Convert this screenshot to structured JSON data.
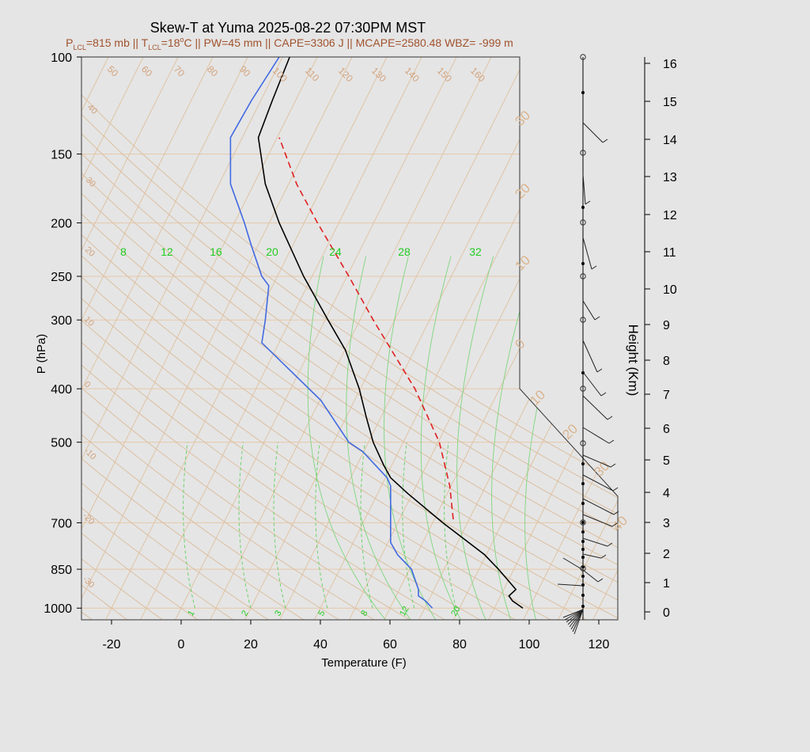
{
  "chart_data": {
    "type": "line",
    "title": "Skew-T at Yuma 2025-08-22 07:30PM MST",
    "subtitle_parts": {
      "plcl_prefix": "P",
      "plcl_sub": "LCL",
      "plcl_value": "=815 mb || T",
      "tlcl_sub": "LCL",
      "tlcl_value": "=18",
      "degree": "o",
      "rest": "C || PW=45 mm || CAPE=3306 J || MCAPE=2580.48 WBZ= -999 m"
    },
    "xlabel": "Temperature (F)",
    "ylabel": "P (hPa)",
    "y2label": "Height (Km)",
    "x_ticks": [
      -20,
      0,
      20,
      40,
      60,
      80,
      100,
      120
    ],
    "p_ticks": [
      100,
      150,
      200,
      250,
      300,
      400,
      500,
      700,
      850,
      1000
    ],
    "height_ticks": [
      "0",
      "1",
      "2",
      "3",
      "4",
      "5",
      "6",
      "7",
      "8",
      "9",
      "10",
      "11",
      "12",
      "13",
      "14",
      "15",
      "16"
    ],
    "isotherm_labels": [
      {
        "text": "50",
        "value": 50
      },
      {
        "text": "60",
        "value": 60
      },
      {
        "text": "70",
        "value": 70
      },
      {
        "text": "80",
        "value": 80
      },
      {
        "text": "90",
        "value": 90
      },
      {
        "text": "100",
        "value": 100
      },
      {
        "text": "110",
        "value": 110
      },
      {
        "text": "120",
        "value": 120
      },
      {
        "text": "130",
        "value": 130
      },
      {
        "text": "140",
        "value": 140
      },
      {
        "text": "150",
        "value": 150
      },
      {
        "text": "160",
        "value": 160
      },
      {
        "text": "40",
        "value": 40
      },
      {
        "text": "30",
        "value": 30
      },
      {
        "text": "20",
        "value": 20
      },
      {
        "text": "10",
        "value": 10
      },
      {
        "text": "0",
        "value": 0
      },
      {
        "text": "-10",
        "value": -10
      },
      {
        "text": "-20",
        "value": -20
      },
      {
        "text": "-30",
        "value": -30
      }
    ],
    "right_isotherm_labels": [
      "30",
      "20",
      "10",
      "0",
      "10",
      "20",
      "30",
      "40"
    ],
    "mixing_ratio_labels_top": [
      "8",
      "12",
      "16",
      "20",
      "24",
      "28",
      "32"
    ],
    "mixing_ratio_labels_bottom": [
      "1",
      "2",
      "3",
      "5",
      "8",
      "12",
      "20"
    ],
    "series": [
      {
        "name": "Temperature",
        "color": "#000000",
        "points": [
          [
            1000,
            100
          ],
          [
            970,
            97
          ],
          [
            950,
            96
          ],
          [
            925,
            98
          ],
          [
            850,
            93
          ],
          [
            800,
            89
          ],
          [
            700,
            77
          ],
          [
            620,
            67
          ],
          [
            580,
            62
          ],
          [
            550,
            60
          ],
          [
            500,
            57
          ],
          [
            450,
            55
          ],
          [
            400,
            53
          ],
          [
            340,
            49
          ],
          [
            300,
            44
          ],
          [
            250,
            37
          ],
          [
            200,
            30
          ],
          [
            170,
            26
          ],
          [
            140,
            24
          ],
          [
            120,
            28
          ],
          [
            100,
            33
          ]
        ]
      },
      {
        "name": "Dewpoint",
        "color": "#4169e1",
        "points": [
          [
            1000,
            74
          ],
          [
            970,
            72
          ],
          [
            950,
            70
          ],
          [
            925,
            70
          ],
          [
            850,
            68
          ],
          [
            800,
            64
          ],
          [
            760,
            62
          ],
          [
            700,
            62
          ],
          [
            650,
            62
          ],
          [
            600,
            62
          ],
          [
            580,
            61
          ],
          [
            520,
            54
          ],
          [
            500,
            50
          ],
          [
            420,
            42
          ],
          [
            330,
            25
          ],
          [
            300,
            26
          ],
          [
            260,
            27
          ],
          [
            250,
            25
          ],
          [
            220,
            22
          ],
          [
            200,
            20
          ],
          [
            170,
            16
          ],
          [
            140,
            16
          ],
          [
            120,
            22
          ],
          [
            100,
            30
          ]
        ]
      },
      {
        "name": "Parcel",
        "color": "#e02020",
        "dash": true,
        "points": [
          [
            690,
            80
          ],
          [
            600,
            79
          ],
          [
            500,
            76
          ],
          [
            400,
            69
          ],
          [
            300,
            57
          ],
          [
            250,
            50
          ],
          [
            200,
            41
          ],
          [
            170,
            35
          ],
          [
            140,
            30
          ]
        ]
      }
    ]
  },
  "hodo_label": "Height (Km)"
}
